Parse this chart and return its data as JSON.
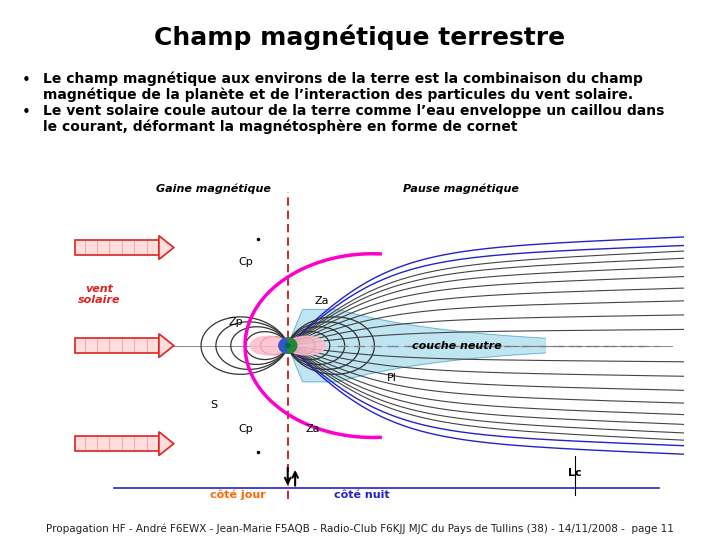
{
  "title": "Champ magnétique terrestre",
  "title_fontsize": 18,
  "bullet1_line1": "Le champ magnétique aux environs de la terre est la combinaison du champ",
  "bullet1_line2": "magnétique de la planète et de l’interaction des particules du vent solaire.",
  "bullet2_line1": "Le vent solaire coule autour de la terre comme l’eau enveloppe un caillou dans",
  "bullet2_line2": "le courant, déformant la magnétosphère en forme de cornet",
  "bullet_fontsize": 10,
  "footer": "Propagation HF - André F6EWX - Jean-Marie F5AQB - Radio-Club F6KJJ MJC du Pays de Tullins (38) - 14/11/2008 -  page 11",
  "footer_fontsize": 7.5,
  "background_color": "#ffffff",
  "text_color": "#000000",
  "bullet_symbol": "•",
  "magenta_color": "#ff00cc",
  "blue_line_color": "#2222cc",
  "dark_line_color": "#444444",
  "red_arrow_color": "#dd2222",
  "cyan_fill": "#aaddee",
  "label_color_orange": "#ff6600"
}
